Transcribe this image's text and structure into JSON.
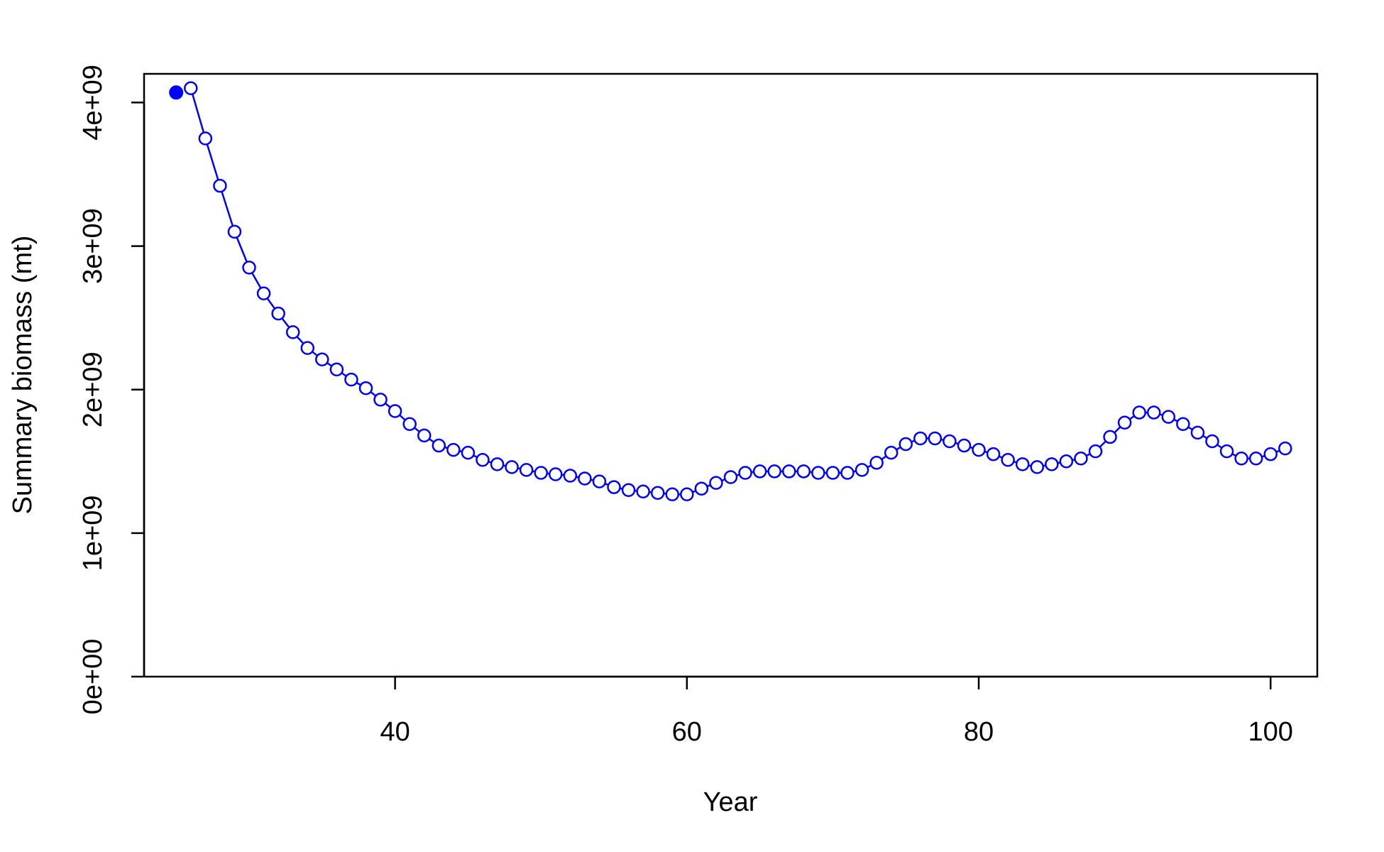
{
  "chart_data": {
    "type": "line",
    "xlabel": "Year",
    "ylabel": "Summary biomass (mt)",
    "xlim": [
      22.8,
      103.2
    ],
    "ylim": [
      0,
      4200000000.0
    ],
    "x_ticks": [
      40,
      60,
      80,
      100
    ],
    "x_tick_labels": [
      "40",
      "60",
      "80",
      "100"
    ],
    "y_ticks": [
      0,
      1000000000,
      2000000000,
      3000000000,
      4000000000
    ],
    "y_tick_labels": [
      "0e+00",
      "1e+09",
      "2e+09",
      "3e+09",
      "4e+09"
    ],
    "color": "#0000ff",
    "grid": false,
    "legend": "none",
    "initial_point": {
      "x": 25,
      "y": 4070000000.0,
      "marker": "filled-circle"
    },
    "series": [
      {
        "marker": "open-circle",
        "x": [
          26,
          27,
          28,
          29,
          30,
          31,
          32,
          33,
          34,
          35,
          36,
          37,
          38,
          39,
          40,
          41,
          42,
          43,
          44,
          45,
          46,
          47,
          48,
          49,
          50,
          51,
          52,
          53,
          54,
          55,
          56,
          57,
          58,
          59,
          60,
          61,
          62,
          63,
          64,
          65,
          66,
          67,
          68,
          69,
          70,
          71,
          72,
          73,
          74,
          75,
          76,
          77,
          78,
          79,
          80,
          81,
          82,
          83,
          84,
          85,
          86,
          87,
          88,
          89,
          90,
          91,
          92,
          93,
          94,
          95,
          96,
          97,
          98,
          99,
          100,
          101
        ],
        "y": [
          4100000000.0,
          3750000000.0,
          3420000000.0,
          3100000000.0,
          2850000000.0,
          2670000000.0,
          2530000000.0,
          2400000000.0,
          2290000000.0,
          2210000000.0,
          2140000000.0,
          2070000000.0,
          2010000000.0,
          1930000000.0,
          1850000000.0,
          1760000000.0,
          1680000000.0,
          1610000000.0,
          1580000000.0,
          1560000000.0,
          1510000000.0,
          1480000000.0,
          1460000000.0,
          1440000000.0,
          1420000000.0,
          1410000000.0,
          1400000000.0,
          1380000000.0,
          1360000000.0,
          1320000000.0,
          1300000000.0,
          1290000000.0,
          1280000000.0,
          1270000000.0,
          1270000000.0,
          1310000000.0,
          1350000000.0,
          1390000000.0,
          1420000000.0,
          1430000000.0,
          1430000000.0,
          1430000000.0,
          1430000000.0,
          1420000000.0,
          1420000000.0,
          1420000000.0,
          1440000000.0,
          1490000000.0,
          1560000000.0,
          1620000000.0,
          1660000000.0,
          1660000000.0,
          1640000000.0,
          1610000000.0,
          1580000000.0,
          1550000000.0,
          1510000000.0,
          1480000000.0,
          1460000000.0,
          1480000000.0,
          1500000000.0,
          1520000000.0,
          1570000000.0,
          1670000000.0,
          1770000000.0,
          1840000000.0,
          1840000000.0,
          1810000000.0,
          1760000000.0,
          1700000000.0,
          1640000000.0,
          1570000000.0,
          1520000000.0,
          1520000000.0,
          1550000000.0,
          1590000000.0
        ]
      }
    ]
  }
}
